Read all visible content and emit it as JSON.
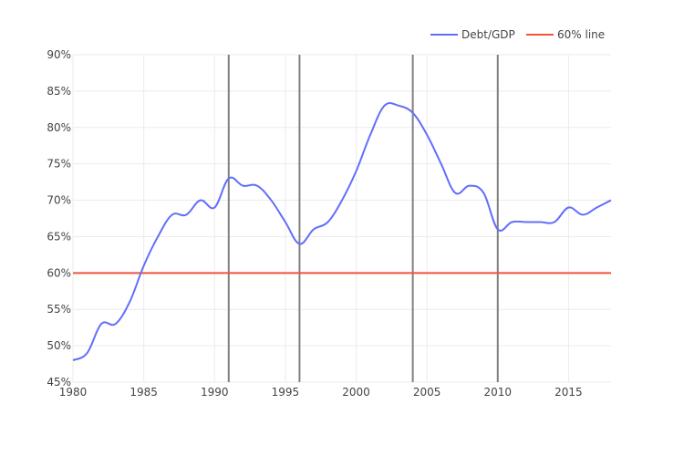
{
  "chart_data": {
    "type": "line",
    "title": "",
    "xlabel": "",
    "ylabel": "",
    "xlim": [
      1980,
      2018
    ],
    "ylim": [
      45,
      90
    ],
    "y_unit": "%",
    "x_ticks": [
      1980,
      1985,
      1990,
      1995,
      2000,
      2005,
      2010,
      2015
    ],
    "y_ticks": [
      45,
      50,
      55,
      60,
      65,
      70,
      75,
      80,
      85,
      90
    ],
    "x_tick_labels": [
      "1980",
      "1985",
      "1990",
      "1995",
      "2000",
      "2005",
      "2010",
      "2015"
    ],
    "y_tick_labels": [
      "45%",
      "50%",
      "55%",
      "60%",
      "65%",
      "70%",
      "75%",
      "80%",
      "85%",
      "90%"
    ],
    "grid": true,
    "legend_position": "top-right",
    "series": [
      {
        "name": "Debt/GDP",
        "color": "#636efa",
        "x": [
          1980,
          1981,
          1982,
          1983,
          1984,
          1985,
          1986,
          1987,
          1988,
          1989,
          1990,
          1991,
          1992,
          1993,
          1994,
          1995,
          1996,
          1997,
          1998,
          1999,
          2000,
          2001,
          2002,
          2003,
          2004,
          2005,
          2006,
          2007,
          2008,
          2009,
          2010,
          2011,
          2012,
          2013,
          2014,
          2015,
          2016,
          2017,
          2018
        ],
        "values": [
          48,
          49,
          53,
          53,
          56,
          61,
          65,
          68,
          68,
          70,
          69,
          73,
          72,
          72,
          70,
          67,
          64,
          66,
          67,
          70,
          74,
          79,
          83,
          83,
          82,
          79,
          75,
          71,
          72,
          71,
          66,
          67,
          67,
          67,
          67,
          69,
          68,
          69,
          70
        ]
      },
      {
        "name": "60% line",
        "color": "#ef553b",
        "x": [
          1980,
          2018
        ],
        "values": [
          60,
          60
        ]
      }
    ],
    "vertical_lines": [
      {
        "x": 1991,
        "color": "#808080"
      },
      {
        "x": 1996,
        "color": "#808080"
      },
      {
        "x": 2004,
        "color": "#808080"
      },
      {
        "x": 2010,
        "color": "#808080"
      }
    ]
  }
}
